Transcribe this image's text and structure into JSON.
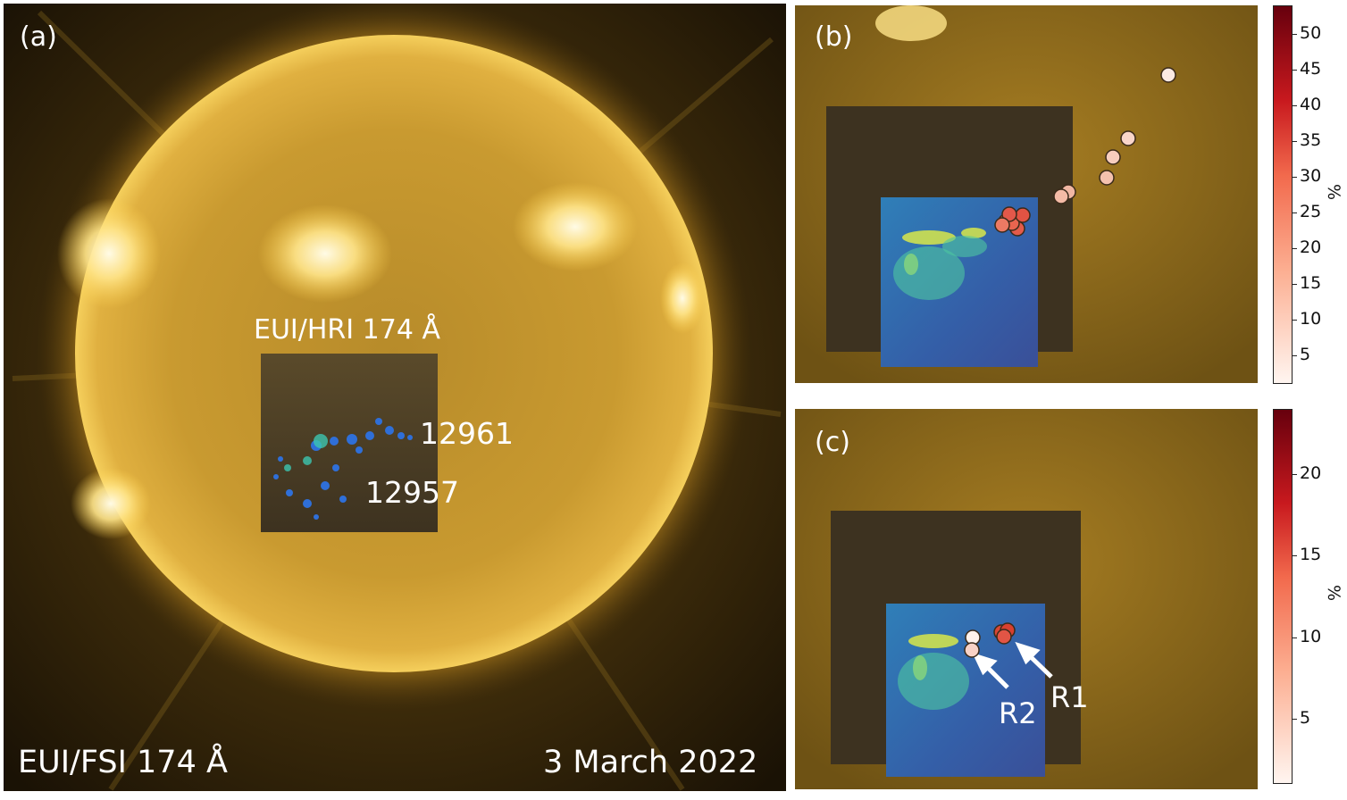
{
  "panel_a": {
    "label": "(a)",
    "instrument": "EUI/FSI 174 Å",
    "date": "3 March 2022",
    "hri_label": "EUI/HRI 174 Å",
    "regions": [
      "12961",
      "12957"
    ]
  },
  "panel_b": {
    "label": "(b)",
    "colorbar": {
      "ticks": [
        "50",
        "45",
        "40",
        "35",
        "30",
        "25",
        "20",
        "15",
        "10",
        "5"
      ],
      "unit": "%",
      "range": [
        1,
        54
      ]
    }
  },
  "panel_c": {
    "label": "(c)",
    "colorbar": {
      "ticks": [
        "20",
        "15",
        "10",
        "5"
      ],
      "unit": "%",
      "range": [
        1,
        24
      ]
    },
    "arrows": [
      "R2",
      "R1"
    ]
  },
  "colors": {
    "corona": "#c9962a",
    "corona_dark": "#3a2e15",
    "hri_blue": "#2a5aa0",
    "marker_low": "#fde6df",
    "marker_high": "#e35b4a",
    "cbar_top": "#67000d",
    "cbar_bottom": "#fff5f0"
  }
}
